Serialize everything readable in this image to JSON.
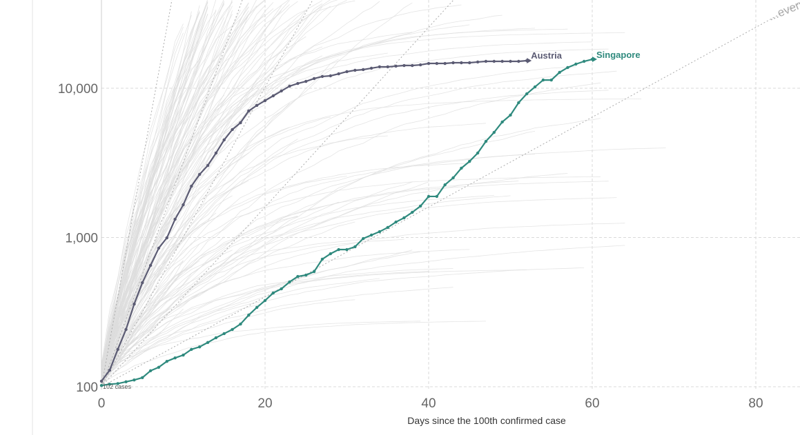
{
  "chart_data": {
    "type": "line",
    "title": "",
    "xlabel": "Days since the 100th confirmed case",
    "ylabel": "",
    "yscale": "log",
    "xlim": [
      0,
      85
    ],
    "ylim": [
      100,
      39000
    ],
    "x_ticks": [
      0,
      20,
      40,
      60,
      80
    ],
    "x_tick_labels": [
      "0",
      "20",
      "40",
      "60",
      "80"
    ],
    "y_ticks": [
      100,
      1000,
      10000
    ],
    "y_tick_labels": [
      "100",
      "1,000",
      "10,000"
    ],
    "grid": true,
    "start_annotation": "102 cases",
    "reference_lines": {
      "label": "...every",
      "doubling_days": [
        1,
        2,
        3,
        5,
        10
      ]
    },
    "colors": {
      "Austria": "#5b5b73",
      "Singapore": "#2f8a7e",
      "others": "#dddddd"
    },
    "series": [
      {
        "name": "Austria",
        "label": "Austria",
        "values": [
          109,
          129,
          178,
          242,
          358,
          498,
          650,
          848,
          995,
          1325,
          1657,
          2208,
          2648,
          3038,
          3680,
          4508,
          5284,
          5875,
          7047,
          7674,
          8260,
          8896,
          9590,
          10330,
          10770,
          11120,
          11610,
          11990,
          12110,
          12500,
          12910,
          13190,
          13330,
          13620,
          13910,
          13910,
          14060,
          14200,
          14200,
          14350,
          14660,
          14660,
          14660,
          14820,
          14820,
          14820,
          14990,
          15140,
          15140,
          15140,
          15140,
          15140,
          15310
        ]
      },
      {
        "name": "Singapore",
        "label": "Singapore",
        "values": [
          102,
          104,
          105,
          108,
          111,
          115,
          128,
          135,
          148,
          156,
          163,
          178,
          185,
          198,
          213,
          227,
          242,
          263,
          302,
          340,
          378,
          425,
          453,
          504,
          548,
          560,
          591,
          716,
          778,
          830,
          830,
          867,
          984,
          1038,
          1094,
          1167,
          1270,
          1355,
          1475,
          1623,
          1884,
          1884,
          2255,
          2510,
          2913,
          3237,
          3680,
          4406,
          5061,
          5942,
          6607,
          8000,
          9180,
          10210,
          11350,
          11350,
          12770,
          13760,
          14510,
          15140,
          15630
        ]
      }
    ]
  }
}
